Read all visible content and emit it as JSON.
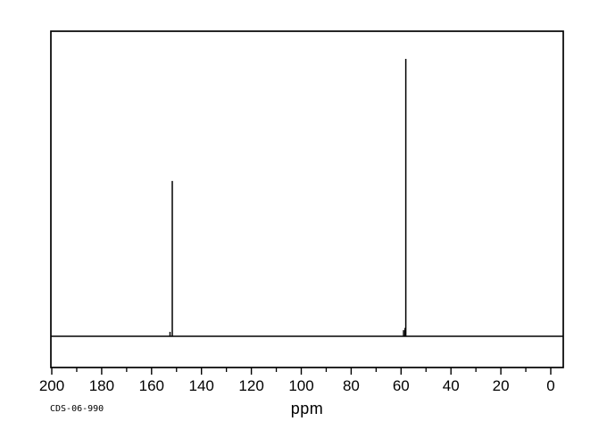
{
  "chart_data": {
    "type": "line",
    "subtype": "nmr-spectrum",
    "title": "",
    "xlabel": "ppm",
    "ylabel": "",
    "grid": false,
    "legend": false,
    "x_axis": {
      "min": 0,
      "max": 200,
      "reversed": true,
      "unit": "ppm",
      "major_ticks": [
        200,
        180,
        160,
        140,
        120,
        100,
        80,
        60,
        40,
        20,
        0
      ],
      "major_tick_labels": [
        "200",
        "180",
        "160",
        "140",
        "120",
        "100",
        "80",
        "60",
        "40",
        "20",
        "0"
      ],
      "minor_ticks": [
        190,
        170,
        150,
        130,
        110,
        90,
        70,
        50,
        30,
        10
      ]
    },
    "peaks": [
      {
        "ppm": 151.7,
        "relative_intensity": 0.56
      },
      {
        "ppm": 58.1,
        "relative_intensity": 1.0
      }
    ],
    "minor_peaks": [
      {
        "ppm": 152.6,
        "relative_intensity": 0.016
      },
      {
        "ppm": 59.0,
        "relative_intensity": 0.022
      },
      {
        "ppm": 58.4,
        "relative_intensity": 0.03
      }
    ]
  },
  "footer": {
    "catalog_id": "CDS-06-990"
  },
  "colors": {
    "line": "#000000",
    "background": "#ffffff"
  }
}
